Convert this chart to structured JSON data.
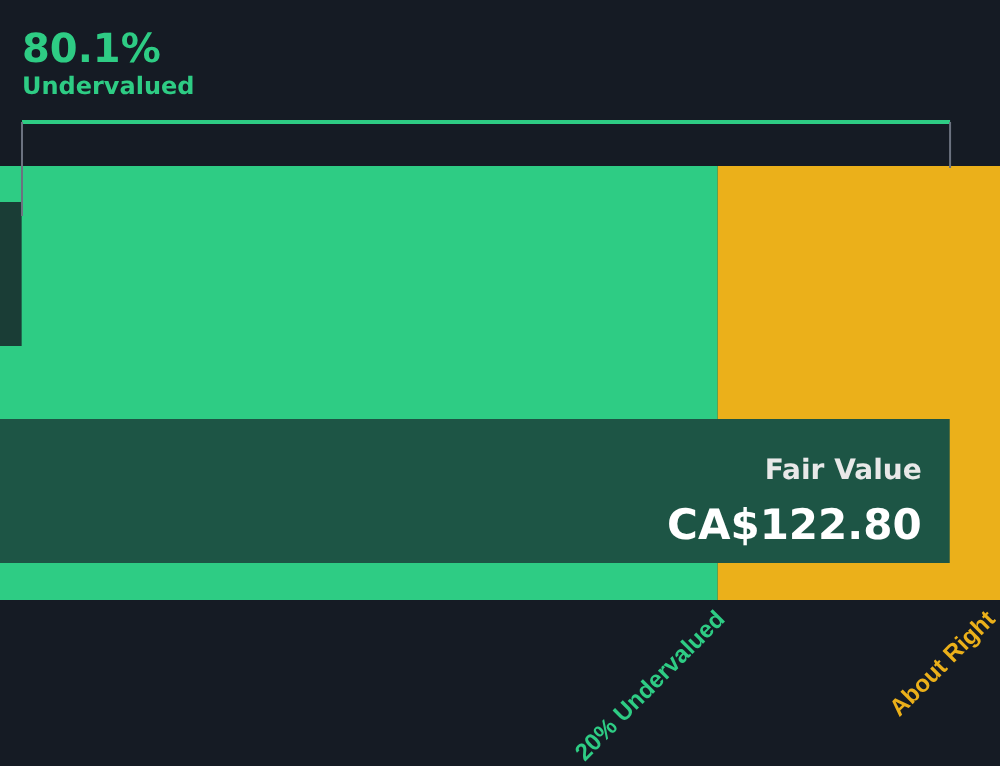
{
  "chart_data": {
    "type": "bar",
    "orientation": "horizontal",
    "xlim": [
      0,
      129.3
    ],
    "tick_labels": false,
    "title": "80.1%",
    "subtitle": "Undervalued",
    "categories": [
      null,
      "Fair Value"
    ],
    "values": [
      2.8,
      122.8
    ],
    "colors": [
      "#1a3d36",
      "#1d5545"
    ],
    "value_labels": [
      null,
      "CA$122.80"
    ],
    "bands": [
      {
        "axis": "x",
        "from": 0,
        "to": 92.8,
        "label": "20% Undervalued",
        "color": "#2ecc84"
      },
      {
        "axis": "x",
        "from": 92.8,
        "to": 129.3,
        "label": "About Right",
        "color": "#ebb01a"
      }
    ],
    "grid": false,
    "legend": false
  }
}
